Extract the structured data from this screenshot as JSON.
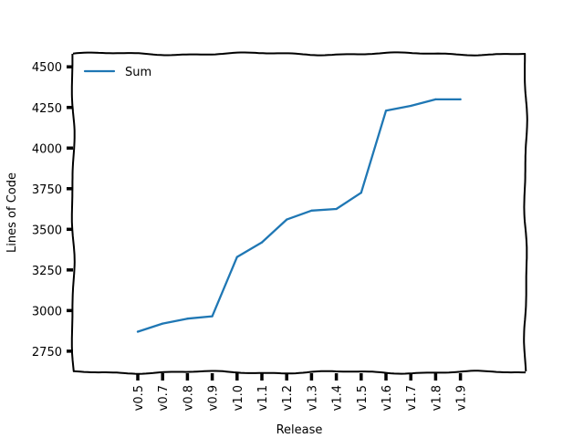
{
  "chart_data": {
    "type": "line",
    "style": "xkcd",
    "title": "",
    "xlabel": "Release",
    "ylabel": "Lines of Code",
    "x_tick_rotation": 90,
    "categories": [
      "v0.5",
      "v0.7",
      "v0.8",
      "v0.9",
      "v1.0",
      "v1.1",
      "v1.2",
      "v1.3",
      "v1.4",
      "v1.5",
      "v1.6",
      "v1.7",
      "v1.8",
      "v1.9"
    ],
    "series": [
      {
        "name": "Sum",
        "color": "#1f77b4",
        "values": [
          2870,
          2920,
          2950,
          2965,
          3330,
          3420,
          3560,
          3615,
          3625,
          3725,
          4230,
          4260,
          4300,
          4300
        ]
      }
    ],
    "ylim": [
      2620,
      4580
    ],
    "yticks": [
      2750,
      3000,
      3250,
      3500,
      3750,
      4000,
      4250,
      4500
    ],
    "grid": false,
    "legend": {
      "position": "upper-left"
    }
  }
}
